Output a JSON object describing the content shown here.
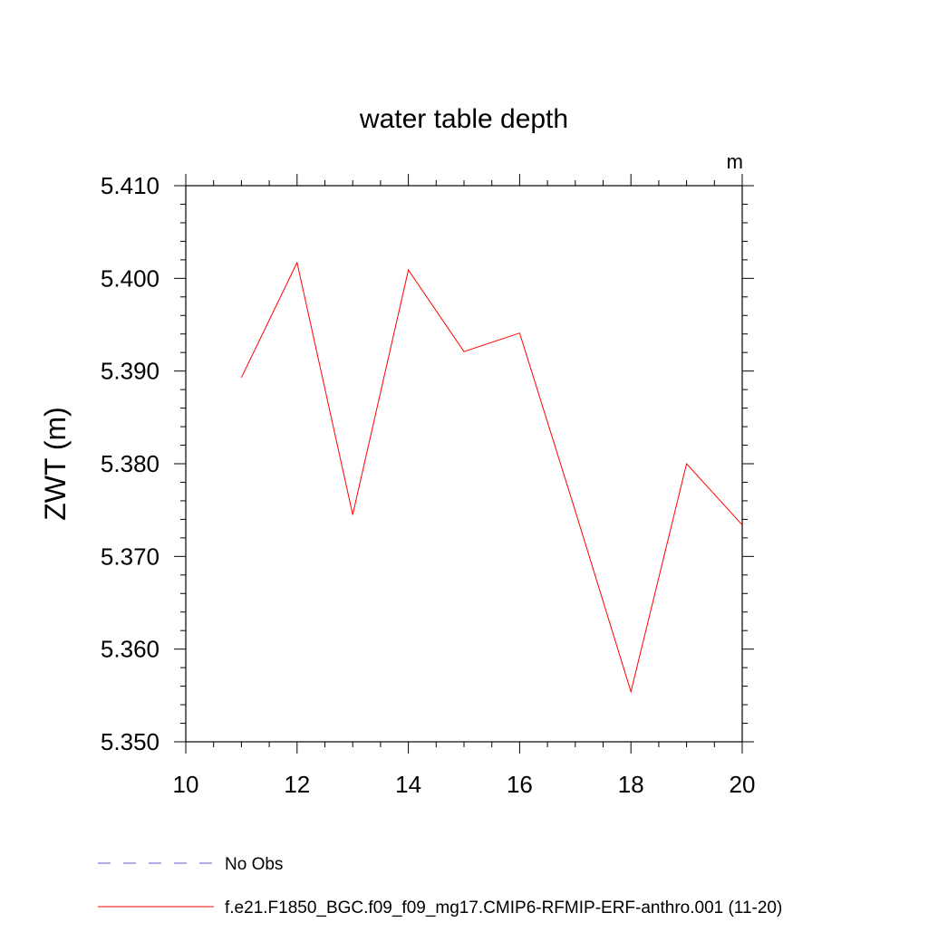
{
  "chart_data": {
    "type": "line",
    "title": "water table depth",
    "units_label": "m",
    "ylabel": "ZWT  (m)",
    "xlabel": "",
    "xlim": [
      10,
      20
    ],
    "ylim": [
      5.35,
      5.41
    ],
    "x_ticks": [
      10,
      12,
      14,
      16,
      18,
      20
    ],
    "x_tick_labels": [
      "10",
      "12",
      "14",
      "16",
      "18",
      "20"
    ],
    "y_ticks": [
      5.35,
      5.36,
      5.37,
      5.38,
      5.39,
      5.4,
      5.41
    ],
    "y_tick_labels": [
      "5.350",
      "5.360",
      "5.370",
      "5.380",
      "5.390",
      "5.400",
      "5.410"
    ],
    "grid": false,
    "legend_position": "bottom",
    "series": [
      {
        "name": "f.e21.F1850_BGC.f09_f09_mg17.CMIP6-RFMIP-ERF-anthro.001 (11-20)",
        "color": "#ff0000",
        "style": "solid",
        "x": [
          11,
          12,
          13,
          14,
          15,
          16,
          17,
          18,
          19,
          20
        ],
        "values": [
          5.3893,
          5.4017,
          5.3745,
          5.4009,
          5.3921,
          5.3941,
          5.3749,
          5.3554,
          5.38,
          5.3734
        ]
      }
    ],
    "legend": [
      {
        "label": "No Obs",
        "color": "#6a5acd",
        "style": "dashed"
      },
      {
        "label": "f.e21.F1850_BGC.f09_f09_mg17.CMIP6-RFMIP-ERF-anthro.001 (11-20)",
        "color": "#ff0000",
        "style": "solid"
      }
    ]
  }
}
